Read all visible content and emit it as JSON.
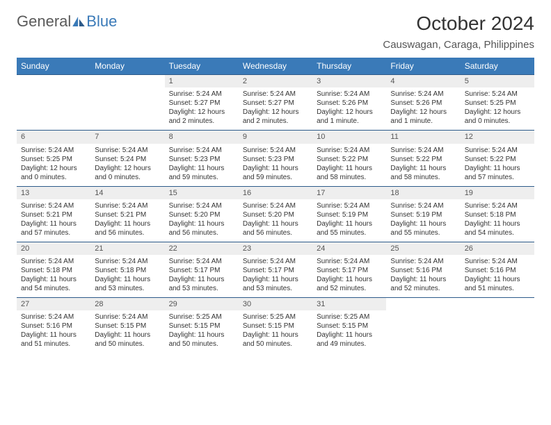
{
  "logo": {
    "text1": "General",
    "text2": "Blue"
  },
  "title": "October 2024",
  "location": "Causwagan, Caraga, Philippines",
  "colors": {
    "header_bg": "#3a7ab8",
    "header_text": "#ffffff",
    "daynum_bg": "#eeeeee",
    "row_border": "#2c5a8a",
    "body_text": "#333333",
    "page_bg": "#ffffff"
  },
  "fonts": {
    "title_size_pt": 21,
    "location_size_pt": 11,
    "weekday_size_pt": 9,
    "cell_size_pt": 7.5
  },
  "weekdays": [
    "Sunday",
    "Monday",
    "Tuesday",
    "Wednesday",
    "Thursday",
    "Friday",
    "Saturday"
  ],
  "weeks": [
    [
      null,
      null,
      {
        "n": "1",
        "sr": "5:24 AM",
        "ss": "5:27 PM",
        "dl": "12 hours and 2 minutes."
      },
      {
        "n": "2",
        "sr": "5:24 AM",
        "ss": "5:27 PM",
        "dl": "12 hours and 2 minutes."
      },
      {
        "n": "3",
        "sr": "5:24 AM",
        "ss": "5:26 PM",
        "dl": "12 hours and 1 minute."
      },
      {
        "n": "4",
        "sr": "5:24 AM",
        "ss": "5:26 PM",
        "dl": "12 hours and 1 minute."
      },
      {
        "n": "5",
        "sr": "5:24 AM",
        "ss": "5:25 PM",
        "dl": "12 hours and 0 minutes."
      }
    ],
    [
      {
        "n": "6",
        "sr": "5:24 AM",
        "ss": "5:25 PM",
        "dl": "12 hours and 0 minutes."
      },
      {
        "n": "7",
        "sr": "5:24 AM",
        "ss": "5:24 PM",
        "dl": "12 hours and 0 minutes."
      },
      {
        "n": "8",
        "sr": "5:24 AM",
        "ss": "5:23 PM",
        "dl": "11 hours and 59 minutes."
      },
      {
        "n": "9",
        "sr": "5:24 AM",
        "ss": "5:23 PM",
        "dl": "11 hours and 59 minutes."
      },
      {
        "n": "10",
        "sr": "5:24 AM",
        "ss": "5:22 PM",
        "dl": "11 hours and 58 minutes."
      },
      {
        "n": "11",
        "sr": "5:24 AM",
        "ss": "5:22 PM",
        "dl": "11 hours and 58 minutes."
      },
      {
        "n": "12",
        "sr": "5:24 AM",
        "ss": "5:22 PM",
        "dl": "11 hours and 57 minutes."
      }
    ],
    [
      {
        "n": "13",
        "sr": "5:24 AM",
        "ss": "5:21 PM",
        "dl": "11 hours and 57 minutes."
      },
      {
        "n": "14",
        "sr": "5:24 AM",
        "ss": "5:21 PM",
        "dl": "11 hours and 56 minutes."
      },
      {
        "n": "15",
        "sr": "5:24 AM",
        "ss": "5:20 PM",
        "dl": "11 hours and 56 minutes."
      },
      {
        "n": "16",
        "sr": "5:24 AM",
        "ss": "5:20 PM",
        "dl": "11 hours and 56 minutes."
      },
      {
        "n": "17",
        "sr": "5:24 AM",
        "ss": "5:19 PM",
        "dl": "11 hours and 55 minutes."
      },
      {
        "n": "18",
        "sr": "5:24 AM",
        "ss": "5:19 PM",
        "dl": "11 hours and 55 minutes."
      },
      {
        "n": "19",
        "sr": "5:24 AM",
        "ss": "5:18 PM",
        "dl": "11 hours and 54 minutes."
      }
    ],
    [
      {
        "n": "20",
        "sr": "5:24 AM",
        "ss": "5:18 PM",
        "dl": "11 hours and 54 minutes."
      },
      {
        "n": "21",
        "sr": "5:24 AM",
        "ss": "5:18 PM",
        "dl": "11 hours and 53 minutes."
      },
      {
        "n": "22",
        "sr": "5:24 AM",
        "ss": "5:17 PM",
        "dl": "11 hours and 53 minutes."
      },
      {
        "n": "23",
        "sr": "5:24 AM",
        "ss": "5:17 PM",
        "dl": "11 hours and 53 minutes."
      },
      {
        "n": "24",
        "sr": "5:24 AM",
        "ss": "5:17 PM",
        "dl": "11 hours and 52 minutes."
      },
      {
        "n": "25",
        "sr": "5:24 AM",
        "ss": "5:16 PM",
        "dl": "11 hours and 52 minutes."
      },
      {
        "n": "26",
        "sr": "5:24 AM",
        "ss": "5:16 PM",
        "dl": "11 hours and 51 minutes."
      }
    ],
    [
      {
        "n": "27",
        "sr": "5:24 AM",
        "ss": "5:16 PM",
        "dl": "11 hours and 51 minutes."
      },
      {
        "n": "28",
        "sr": "5:24 AM",
        "ss": "5:15 PM",
        "dl": "11 hours and 50 minutes."
      },
      {
        "n": "29",
        "sr": "5:25 AM",
        "ss": "5:15 PM",
        "dl": "11 hours and 50 minutes."
      },
      {
        "n": "30",
        "sr": "5:25 AM",
        "ss": "5:15 PM",
        "dl": "11 hours and 50 minutes."
      },
      {
        "n": "31",
        "sr": "5:25 AM",
        "ss": "5:15 PM",
        "dl": "11 hours and 49 minutes."
      },
      null,
      null
    ]
  ],
  "labels": {
    "sunrise": "Sunrise:",
    "sunset": "Sunset:",
    "daylight": "Daylight:"
  }
}
